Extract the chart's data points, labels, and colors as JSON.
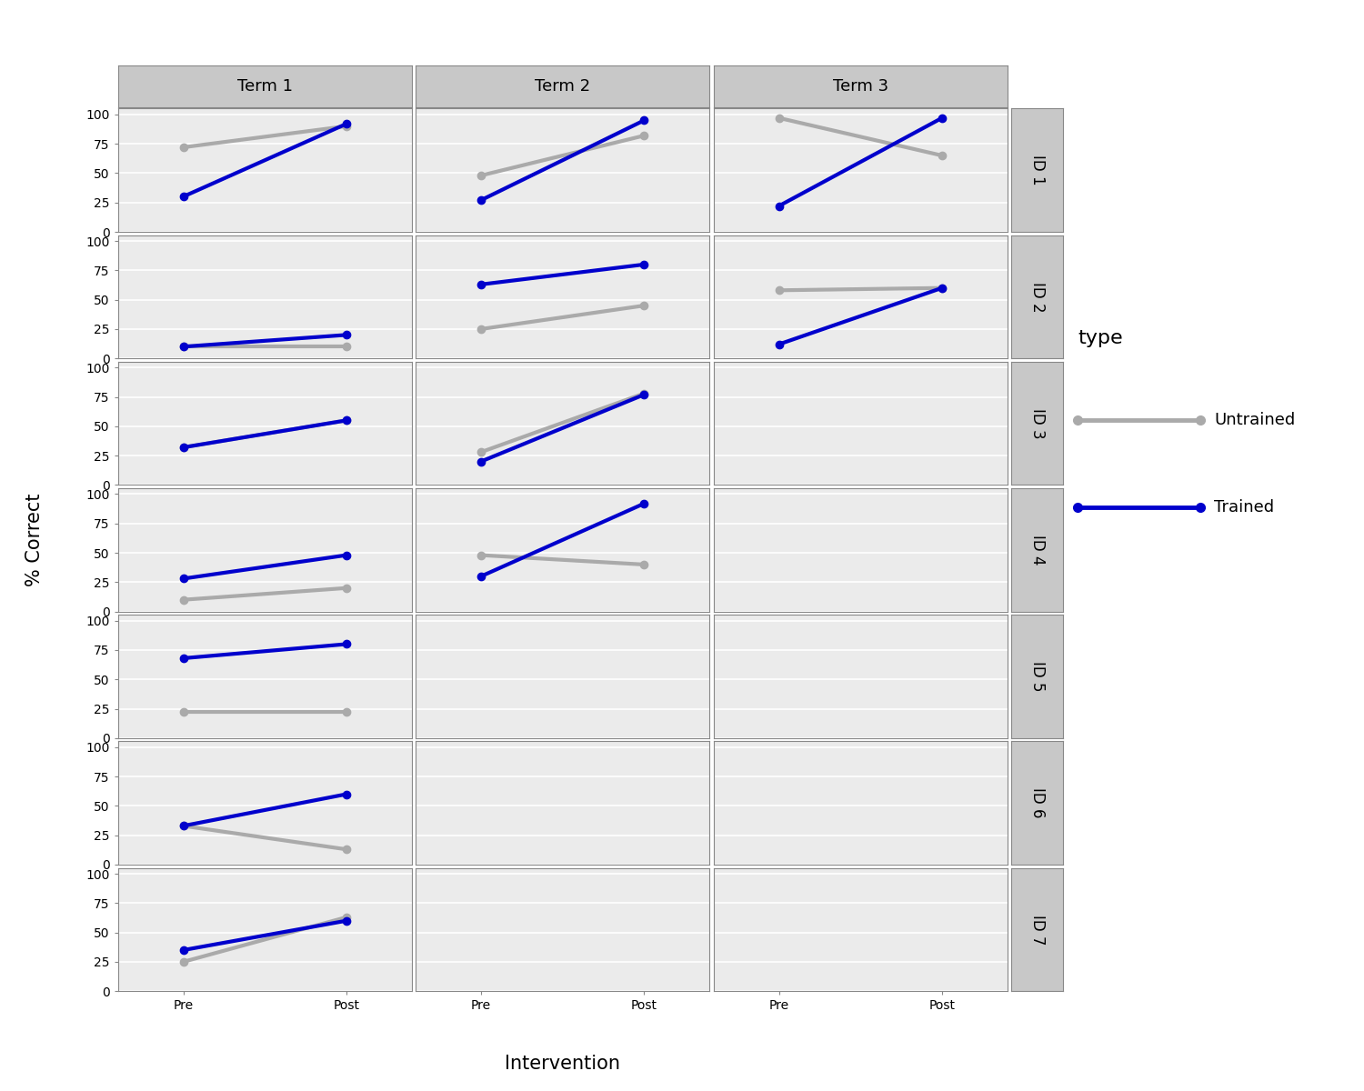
{
  "title": "",
  "xlabel": "Intervention",
  "ylabel": "% Correct",
  "terms": [
    "Term 1",
    "Term 2",
    "Term 3"
  ],
  "ids": [
    "ID 1",
    "ID 2",
    "ID 3",
    "ID 4",
    "ID 5",
    "ID 6",
    "ID 7"
  ],
  "x_labels": [
    "Pre",
    "Post"
  ],
  "x_positions": [
    0,
    1
  ],
  "trained_color": "#0000CC",
  "untrained_color": "#AAAAAA",
  "line_width": 3.0,
  "marker_size": 6,
  "yticks": [
    0,
    25,
    50,
    75,
    100
  ],
  "data": {
    "ID 1": {
      "Term 1": {
        "trained": [
          30,
          92
        ],
        "untrained": [
          72,
          90
        ]
      },
      "Term 2": {
        "trained": [
          27,
          95
        ],
        "untrained": [
          48,
          82
        ]
      },
      "Term 3": {
        "trained": [
          22,
          97
        ],
        "untrained": [
          97,
          65
        ]
      }
    },
    "ID 2": {
      "Term 1": {
        "trained": [
          10,
          20
        ],
        "untrained": [
          10,
          10
        ]
      },
      "Term 2": {
        "trained": [
          63,
          80
        ],
        "untrained": [
          25,
          45
        ]
      },
      "Term 3": {
        "trained": [
          12,
          60
        ],
        "untrained": [
          58,
          60
        ]
      }
    },
    "ID 3": {
      "Term 1": {
        "trained": [
          32,
          55
        ],
        "untrained": [
          32,
          55
        ]
      },
      "Term 2": {
        "trained": [
          20,
          77
        ],
        "untrained": [
          28,
          78
        ]
      },
      "Term 3": {
        "trained": null,
        "untrained": null
      }
    },
    "ID 4": {
      "Term 1": {
        "trained": [
          28,
          48
        ],
        "untrained": [
          10,
          20
        ]
      },
      "Term 2": {
        "trained": [
          30,
          92
        ],
        "untrained": [
          48,
          40
        ]
      },
      "Term 3": {
        "trained": null,
        "untrained": null
      }
    },
    "ID 5": {
      "Term 1": {
        "trained": [
          68,
          80
        ],
        "untrained": [
          22,
          22
        ]
      },
      "Term 2": {
        "trained": null,
        "untrained": null
      },
      "Term 3": {
        "trained": null,
        "untrained": null
      }
    },
    "ID 6": {
      "Term 1": {
        "trained": [
          33,
          60
        ],
        "untrained": [
          33,
          13
        ]
      },
      "Term 2": {
        "trained": null,
        "untrained": null
      },
      "Term 3": {
        "trained": null,
        "untrained": null
      }
    },
    "ID 7": {
      "Term 1": {
        "trained": [
          35,
          60
        ],
        "untrained": [
          25,
          63
        ]
      },
      "Term 2": {
        "trained": null,
        "untrained": null
      },
      "Term 3": {
        "trained": null,
        "untrained": null
      }
    }
  },
  "fig_bg": "#FFFFFF",
  "strip_bg": "#C8C8C8",
  "plot_bg": "#EBEBEB",
  "grid_color": "#FFFFFF",
  "border_color": "#888888",
  "strip_text_size": 13,
  "axis_label_size": 15,
  "tick_label_size": 10,
  "legend_title_size": 16,
  "legend_text_size": 13
}
